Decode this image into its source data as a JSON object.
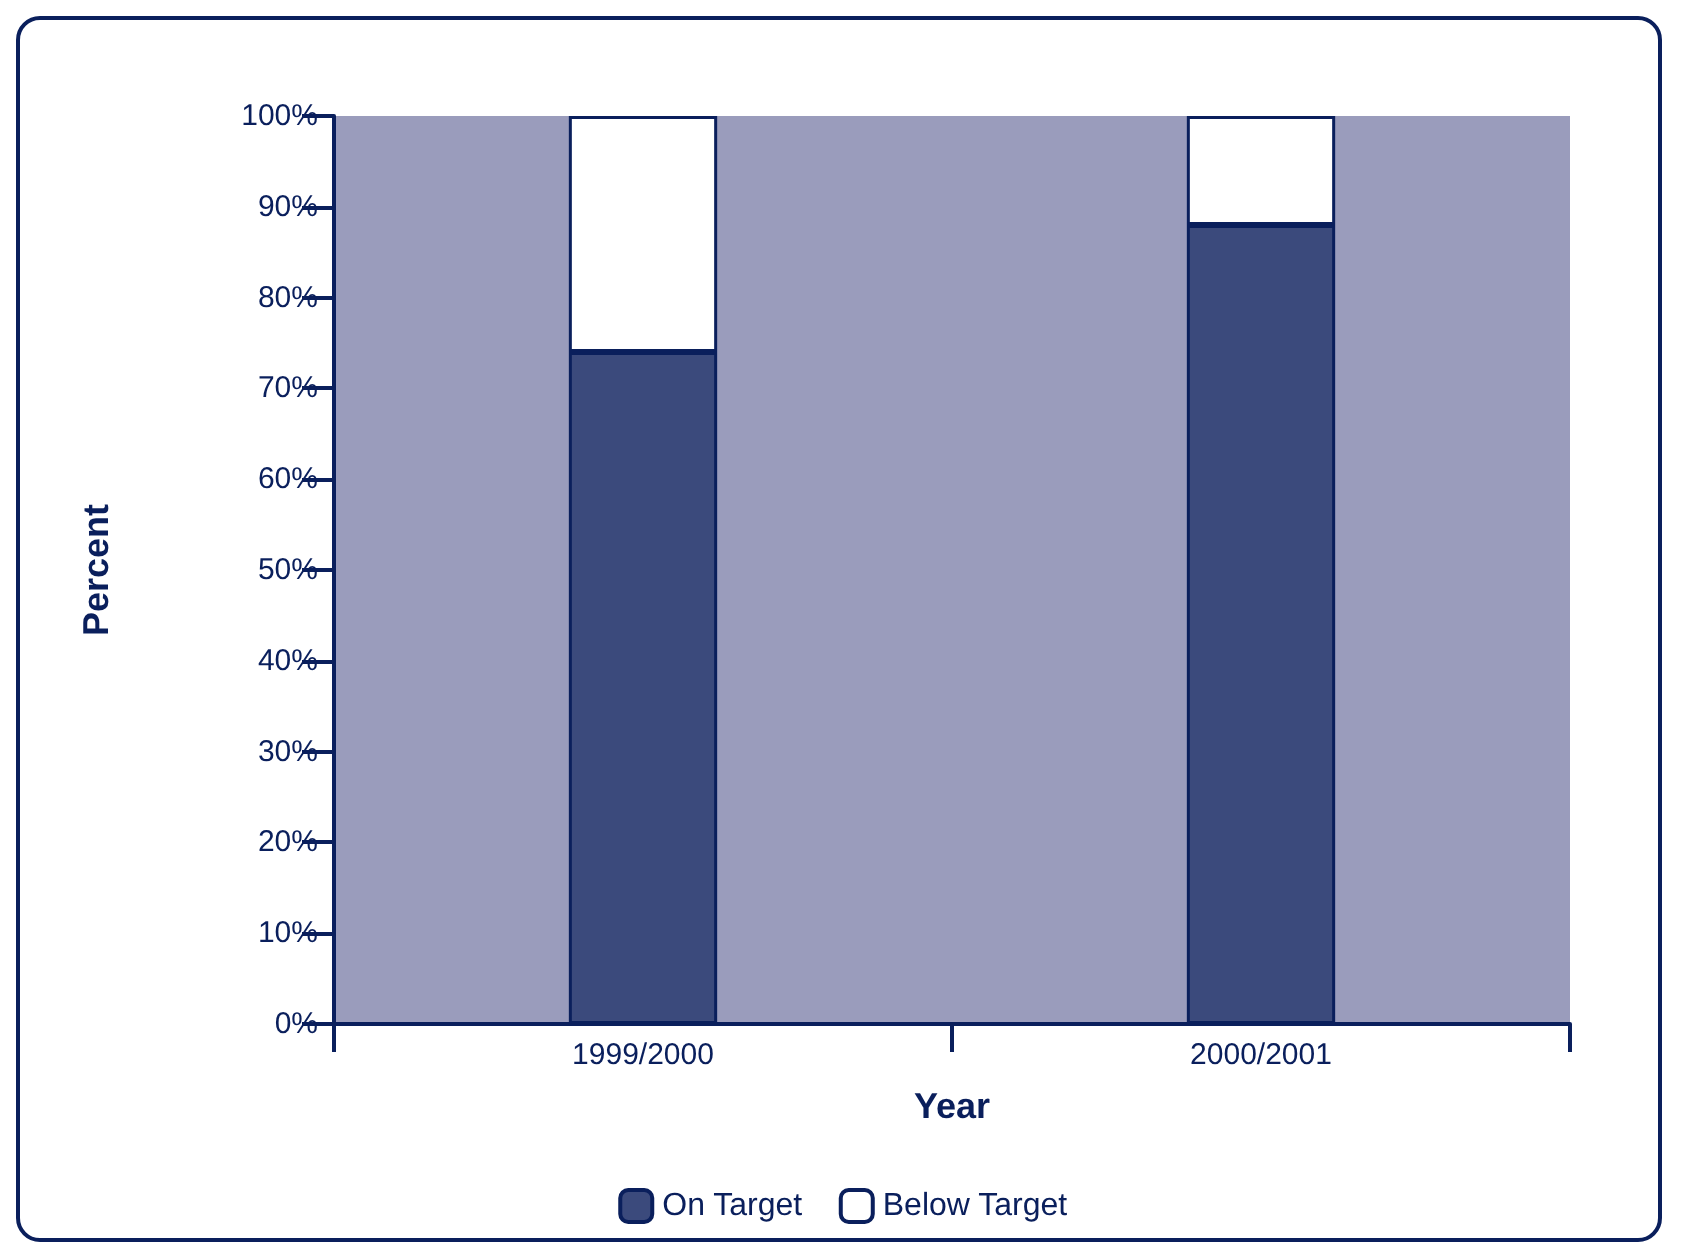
{
  "chart_data": {
    "type": "bar",
    "stacked": true,
    "xlabel": "Year",
    "ylabel": "Percent",
    "categories": [
      "1999/2000",
      "2000/2001"
    ],
    "series": [
      {
        "name": "On Target",
        "color": "#3b4a7c",
        "values": [
          74,
          88
        ]
      },
      {
        "name": "Below Target",
        "color": "#ffffff",
        "values": [
          26,
          12
        ]
      }
    ],
    "ylim": [
      0,
      100
    ],
    "yticks": [
      {
        "value": 0,
        "label": "0%"
      },
      {
        "value": 10,
        "label": "10%"
      },
      {
        "value": 20,
        "label": "20%"
      },
      {
        "value": 30,
        "label": "30%"
      },
      {
        "value": 40,
        "label": "40%"
      },
      {
        "value": 50,
        "label": "50%"
      },
      {
        "value": 60,
        "label": "60%"
      },
      {
        "value": 70,
        "label": "70%"
      },
      {
        "value": 80,
        "label": "80%"
      },
      {
        "value": 90,
        "label": "90%"
      },
      {
        "value": 100,
        "label": "100%"
      }
    ],
    "legend": "bottom"
  }
}
